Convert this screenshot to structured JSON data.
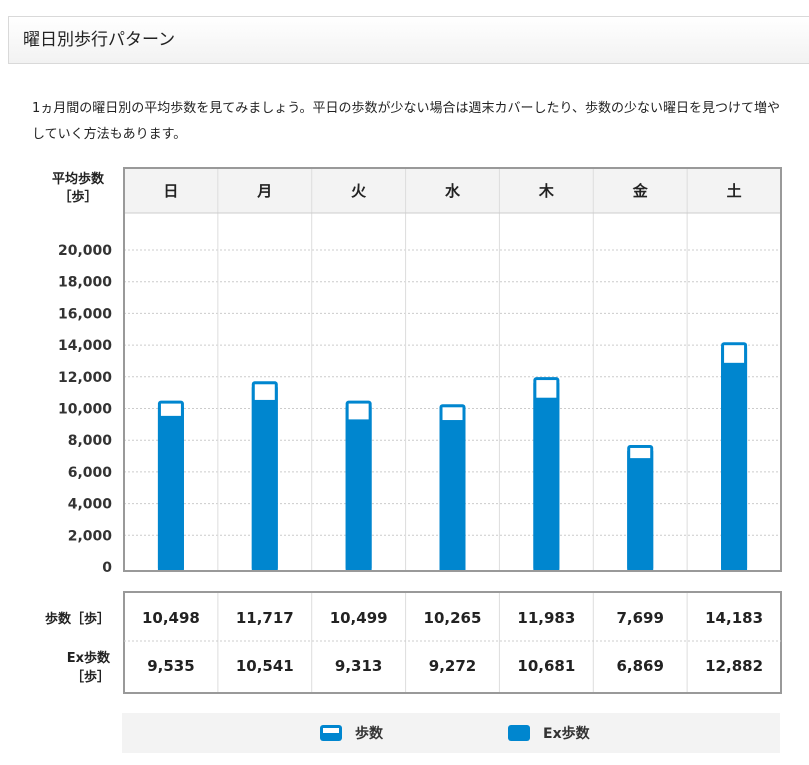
{
  "header": {
    "title": "曜日別歩行パターン"
  },
  "description": {
    "text": "1ヵ月間の曜日別の平均歩数を見てみましょう。平日の歩数が少ない場合は週末カバーしたり、歩数の少ない曜日を見つけて増やしていく方法もあります。"
  },
  "chart_data": {
    "type": "bar",
    "ylabel": "平均歩数\n［歩］",
    "categories": [
      "日",
      "月",
      "火",
      "水",
      "木",
      "金",
      "土"
    ],
    "ylim": [
      0,
      20000
    ],
    "yticks": [
      "0",
      "2,000",
      "4,000",
      "6,000",
      "8,000",
      "10,000",
      "12,000",
      "14,000",
      "16,000",
      "18,000",
      "20,000"
    ],
    "grid": true,
    "series": [
      {
        "name": "歩数",
        "values": [
          10498,
          11717,
          10499,
          10265,
          11983,
          7699,
          14183
        ]
      },
      {
        "name": "Ex歩数",
        "values": [
          9535,
          10541,
          9313,
          9272,
          10681,
          6869,
          12882
        ]
      }
    ],
    "legend_position": "bottom",
    "colors": {
      "steps": "#0086cf",
      "ex_steps": "#0086cf",
      "grid": "#cccccc",
      "frame": "#999999"
    }
  },
  "table": {
    "row_labels": [
      "歩数［歩］",
      "Ex歩数\n［歩］"
    ],
    "rows": [
      [
        "10,498",
        "11,717",
        "10,499",
        "10,265",
        "11,983",
        "7,699",
        "14,183"
      ],
      [
        "9,535",
        "10,541",
        "9,313",
        "9,272",
        "10,681",
        "6,869",
        "12,882"
      ]
    ]
  },
  "legend": [
    {
      "label": "歩数",
      "icon": "outlined-bar-swatch"
    },
    {
      "label": "Ex歩数",
      "icon": "solid-bar-swatch"
    }
  ]
}
